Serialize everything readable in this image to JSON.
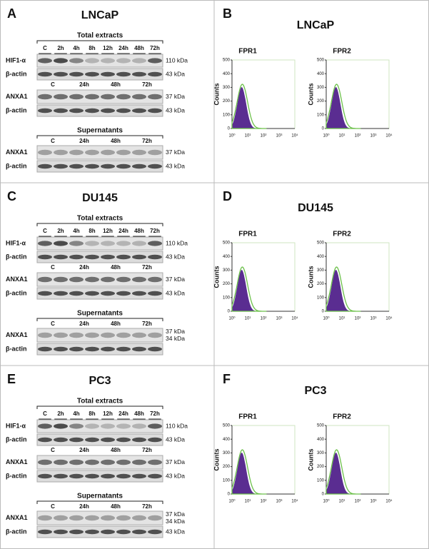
{
  "rows": [
    {
      "blot": {
        "letter": "A",
        "title": "LNCaP",
        "groups": [
          {
            "heading": "Total extracts",
            "lanes": [
              "C",
              "2h",
              "4h",
              "8h",
              "12h",
              "24h",
              "48h",
              "72h"
            ],
            "rows": [
              {
                "label": "HIF1-α",
                "sizes": [
                  "110 kDa"
                ]
              },
              {
                "label": "β-actin",
                "sizes": [
                  "43 kDa"
                ]
              }
            ]
          },
          {
            "lanes": [
              "C",
              "24h",
              "48h",
              "72h"
            ],
            "rows": [
              {
                "label": "ANXA1",
                "sizes": [
                  "37 kDa"
                ]
              },
              {
                "label": "β-actin",
                "sizes": [
                  "43 kDa"
                ]
              }
            ]
          },
          {
            "heading": "Supernatants",
            "lanes": [
              "C",
              "24h",
              "48h",
              "72h"
            ],
            "rows": [
              {
                "label": "ANXA1",
                "sizes": [
                  "37 kDa"
                ]
              },
              {
                "label": "β-actin",
                "sizes": [
                  "43 kDa"
                ]
              }
            ]
          }
        ]
      },
      "flow": {
        "letter": "B",
        "title": "LNCaP",
        "histograms": [
          {
            "title": "FPR1",
            "y_label": "Counts",
            "yticks": [
              0,
              100,
              200,
              300,
              400,
              500
            ],
            "xticks": [
              "10⁰",
              "10¹",
              "10²",
              "10³",
              "10⁴"
            ]
          },
          {
            "title": "FPR2",
            "y_label": "Counts",
            "yticks": [
              0,
              100,
              200,
              300,
              400,
              500
            ],
            "xticks": [
              "10⁰",
              "10¹",
              "10²",
              "10³",
              "10⁴"
            ]
          }
        ]
      }
    },
    {
      "blot": {
        "letter": "C",
        "title": "DU145",
        "groups": [
          {
            "heading": "Total extracts",
            "lanes": [
              "C",
              "2h",
              "4h",
              "8h",
              "12h",
              "24h",
              "48h",
              "72h"
            ],
            "rows": [
              {
                "label": "HIF1-α",
                "sizes": [
                  "110 kDa"
                ]
              },
              {
                "label": "β-actin",
                "sizes": [
                  "43 kDa"
                ]
              }
            ]
          },
          {
            "lanes": [
              "C",
              "24h",
              "48h",
              "72h"
            ],
            "rows": [
              {
                "label": "ANXA1",
                "sizes": [
                  "37 kDa"
                ]
              },
              {
                "label": "β-actin",
                "sizes": [
                  "43 kDa"
                ]
              }
            ]
          },
          {
            "heading": "Supernatants",
            "lanes": [
              "C",
              "24h",
              "48h",
              "72h"
            ],
            "rows": [
              {
                "label": "ANXA1",
                "sizes": [
                  "37 kDa",
                  "34 kDa"
                ]
              },
              {
                "label": "β-actin"
              }
            ]
          }
        ]
      },
      "flow": {
        "letter": "D",
        "title": "DU145",
        "histograms": [
          {
            "title": "FPR1",
            "y_label": "Counts",
            "yticks": [
              0,
              100,
              200,
              300,
              400,
              500
            ],
            "xticks": [
              "10⁰",
              "10¹",
              "10²",
              "10³",
              "10⁴"
            ]
          },
          {
            "title": "FPR2",
            "y_label": "Counts",
            "yticks": [
              0,
              100,
              200,
              300,
              400,
              500
            ],
            "xticks": [
              "10⁰",
              "10¹",
              "10²",
              "10³",
              "10⁴"
            ]
          }
        ]
      }
    },
    {
      "blot": {
        "letter": "E",
        "title": "PC3",
        "groups": [
          {
            "heading": "Total extracts",
            "lanes": [
              "C",
              "2h",
              "4h",
              "8h",
              "12h",
              "24h",
              "48h",
              "72h"
            ],
            "rows": [
              {
                "label": "HIF1-α",
                "sizes": [
                  "110 kDa"
                ]
              },
              {
                "label": "β-actin",
                "sizes": [
                  "43 kDa"
                ]
              }
            ]
          },
          {
            "lanes": [
              "C",
              "24h",
              "48h",
              "72h"
            ],
            "rows": [
              {
                "label": "ANXA1",
                "sizes": [
                  "37 kDa"
                ]
              },
              {
                "label": "β-actin",
                "sizes": [
                  "43 kDa"
                ]
              }
            ]
          },
          {
            "heading": "Supernatants",
            "lanes": [
              "C",
              "24h",
              "48h",
              "72h"
            ],
            "rows": [
              {
                "label": "ANXA1",
                "sizes": [
                  "37 kDa",
                  "34 kDa"
                ]
              },
              {
                "label": "β-actin",
                "sizes": [
                  "43 kDa"
                ]
              }
            ]
          }
        ]
      },
      "flow": {
        "letter": "F",
        "title": "PC3",
        "histograms": [
          {
            "title": "FPR1",
            "y_label": "Counts",
            "yticks": [
              0,
              100,
              200,
              300,
              400,
              500
            ],
            "xticks": [
              "10⁰",
              "10¹",
              "10²",
              "10³",
              "10⁴"
            ]
          },
          {
            "title": "FPR2",
            "y_label": "Counts",
            "yticks": [
              0,
              100,
              200,
              300,
              400,
              500
            ],
            "xticks": [
              "10⁰",
              "10¹",
              "10²",
              "10³",
              "10⁴"
            ]
          }
        ]
      }
    }
  ]
}
